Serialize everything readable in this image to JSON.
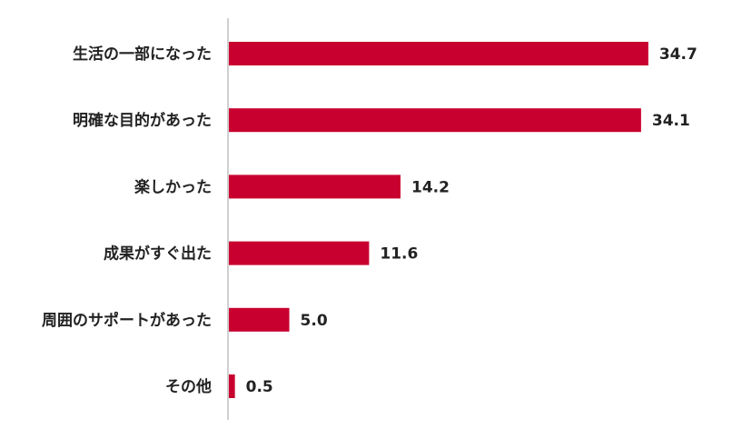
{
  "chart_data": {
    "type": "bar",
    "orientation": "horizontal",
    "categories": [
      "生活の一部になった",
      "明確な目的があった",
      "楽しかった",
      "成果がすぐ出た",
      "周囲のサポートがあった",
      "その他"
    ],
    "values": [
      34.7,
      34.1,
      14.2,
      11.6,
      5.0,
      0.5
    ],
    "data_labels": [
      "34.7",
      "34.1",
      "14.2",
      "11.6",
      "5.0",
      "0.5"
    ],
    "title": "",
    "xlabel": "",
    "ylabel": "",
    "xlim": [
      0,
      35
    ],
    "grid": false,
    "legend": "none",
    "bar_color": "#c8002f",
    "axis_color": "#d0d0d0"
  }
}
